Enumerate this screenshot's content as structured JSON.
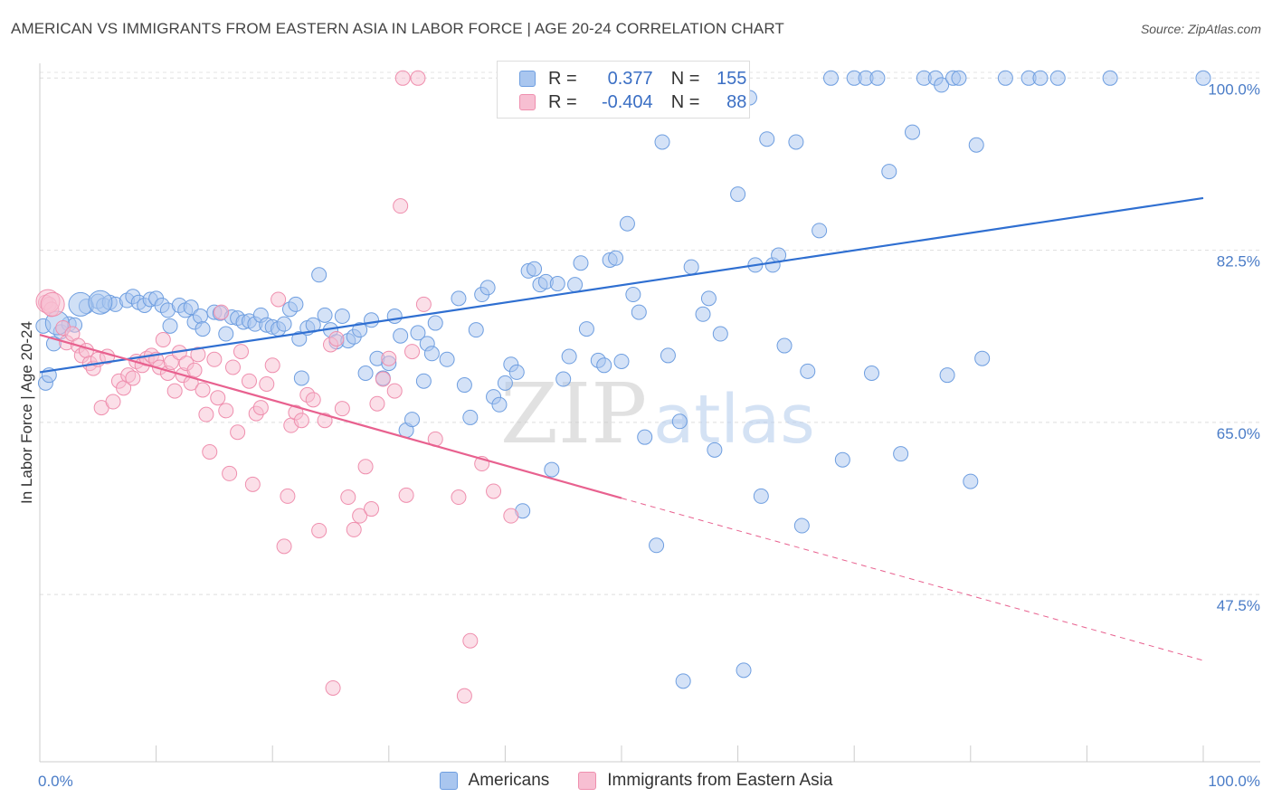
{
  "chart_data": {
    "type": "scatter",
    "title": "AMERICAN VS IMMIGRANTS FROM EASTERN ASIA IN LABOR FORCE | AGE 20-24 CORRELATION CHART",
    "source": "Source: ZipAtlas.com",
    "ylabel": "In Labor Force | Age 20-24",
    "xlabel": "",
    "xlim": [
      0,
      100
    ],
    "ylim": [
      30.5,
      101.5
    ],
    "x_tick_labels": [
      "0.0%",
      "100.0%"
    ],
    "y_ticks": [
      {
        "value": 100,
        "label": "100.0%"
      },
      {
        "value": 82.5,
        "label": "82.5%"
      },
      {
        "value": 65,
        "label": "65.0%"
      },
      {
        "value": 47.5,
        "label": "47.5%"
      }
    ],
    "watermark": {
      "zip": "ZIP",
      "atlas": "atlas"
    },
    "legend": {
      "r_label": "R =",
      "n_label": "N =",
      "entries": [
        {
          "r": "0.377",
          "n": "155"
        },
        {
          "r": "-0.404",
          "n": "88"
        }
      ]
    },
    "series": [
      {
        "name": "Americans",
        "color": "#6e9ee0",
        "fill": "#a9c6ef",
        "trend": {
          "x0": 0,
          "y0": 70.1,
          "x1": 100,
          "y1": 87.8
        },
        "points": [
          [
            0.5,
            69.0
          ],
          [
            0.8,
            69.8
          ],
          [
            1.2,
            73.0
          ],
          [
            1.8,
            74.2
          ],
          [
            2.5,
            75.0
          ],
          [
            3.0,
            74.9
          ],
          [
            4.0,
            76.8
          ],
          [
            5.0,
            77.3
          ],
          [
            5.5,
            76.9
          ],
          [
            6.0,
            77.2
          ],
          [
            6.5,
            77.0
          ],
          [
            7.5,
            77.4
          ],
          [
            8.0,
            77.8
          ],
          [
            8.5,
            77.2
          ],
          [
            9.0,
            76.9
          ],
          [
            9.5,
            77.5
          ],
          [
            10.0,
            77.6
          ],
          [
            10.5,
            76.9
          ],
          [
            11.0,
            76.4
          ],
          [
            11.2,
            74.8
          ],
          [
            12.0,
            76.9
          ],
          [
            12.5,
            76.4
          ],
          [
            13.0,
            76.7
          ],
          [
            13.3,
            75.2
          ],
          [
            13.8,
            75.8
          ],
          [
            14.0,
            74.5
          ],
          [
            15.0,
            76.2
          ],
          [
            15.5,
            76.1
          ],
          [
            16.0,
            74.0
          ],
          [
            16.5,
            75.7
          ],
          [
            17.0,
            75.6
          ],
          [
            17.5,
            75.2
          ],
          [
            18.0,
            75.3
          ],
          [
            18.5,
            75.0
          ],
          [
            19.0,
            75.9
          ],
          [
            19.5,
            74.9
          ],
          [
            20.0,
            74.7
          ],
          [
            20.5,
            74.5
          ],
          [
            21.0,
            75.0
          ],
          [
            21.5,
            76.5
          ],
          [
            22.0,
            77.0
          ],
          [
            22.3,
            73.5
          ],
          [
            22.5,
            69.5
          ],
          [
            23.0,
            74.6
          ],
          [
            23.5,
            74.9
          ],
          [
            24.0,
            80.0
          ],
          [
            24.5,
            75.9
          ],
          [
            25.0,
            74.4
          ],
          [
            25.5,
            73.2
          ],
          [
            26.0,
            75.8
          ],
          [
            26.5,
            73.3
          ],
          [
            27.0,
            73.7
          ],
          [
            27.5,
            74.4
          ],
          [
            28.0,
            70.0
          ],
          [
            28.5,
            75.4
          ],
          [
            29.0,
            71.5
          ],
          [
            29.5,
            69.5
          ],
          [
            30.0,
            71.0
          ],
          [
            30.5,
            75.8
          ],
          [
            31.0,
            73.8
          ],
          [
            31.5,
            64.2
          ],
          [
            32.0,
            65.3
          ],
          [
            32.5,
            74.1
          ],
          [
            33.0,
            69.2
          ],
          [
            33.3,
            73.0
          ],
          [
            33.7,
            72.0
          ],
          [
            34.0,
            75.1
          ],
          [
            35.0,
            71.4
          ],
          [
            36.0,
            77.6
          ],
          [
            36.5,
            68.8
          ],
          [
            37.0,
            65.5
          ],
          [
            37.5,
            74.4
          ],
          [
            38.0,
            78.0
          ],
          [
            38.5,
            78.7
          ],
          [
            39.0,
            67.6
          ],
          [
            39.5,
            66.8
          ],
          [
            40.0,
            69.0
          ],
          [
            40.5,
            70.9
          ],
          [
            41.0,
            70.1
          ],
          [
            41.5,
            56.0
          ],
          [
            42.0,
            80.4
          ],
          [
            42.5,
            80.6
          ],
          [
            43.0,
            79.0
          ],
          [
            43.5,
            79.3
          ],
          [
            44.0,
            60.2
          ],
          [
            44.5,
            79.1
          ],
          [
            45.0,
            69.4
          ],
          [
            45.5,
            71.7
          ],
          [
            46.0,
            79.0
          ],
          [
            46.5,
            81.2
          ],
          [
            47.0,
            74.5
          ],
          [
            48.0,
            71.3
          ],
          [
            48.5,
            70.8
          ],
          [
            49.0,
            81.5
          ],
          [
            49.5,
            81.7
          ],
          [
            50.0,
            71.2
          ],
          [
            50.5,
            85.2
          ],
          [
            51.0,
            78.0
          ],
          [
            51.5,
            76.2
          ],
          [
            52.0,
            63.5
          ],
          [
            53.0,
            52.5
          ],
          [
            53.5,
            93.5
          ],
          [
            54.0,
            71.8
          ],
          [
            55.0,
            65.1
          ],
          [
            55.3,
            38.7
          ],
          [
            56.0,
            80.8
          ],
          [
            57.0,
            76.0
          ],
          [
            57.5,
            77.6
          ],
          [
            58.0,
            62.2
          ],
          [
            58.5,
            74.0
          ],
          [
            60.0,
            88.2
          ],
          [
            60.5,
            39.8
          ],
          [
            61.0,
            98.0
          ],
          [
            61.5,
            81.0
          ],
          [
            62.0,
            57.5
          ],
          [
            62.5,
            93.8
          ],
          [
            63.0,
            81.0
          ],
          [
            63.5,
            82.0
          ],
          [
            64.0,
            72.8
          ],
          [
            65.0,
            93.5
          ],
          [
            65.5,
            54.5
          ],
          [
            66.0,
            70.2
          ],
          [
            67.0,
            84.5
          ],
          [
            68.0,
            100.0
          ],
          [
            69.0,
            61.2
          ],
          [
            70.0,
            100.0
          ],
          [
            71.0,
            100.0
          ],
          [
            71.5,
            70.0
          ],
          [
            72.0,
            100.0
          ],
          [
            73.0,
            90.5
          ],
          [
            74.0,
            61.8
          ],
          [
            75.0,
            94.5
          ],
          [
            76.0,
            100.0
          ],
          [
            77.0,
            100.0
          ],
          [
            77.5,
            99.3
          ],
          [
            78.0,
            69.8
          ],
          [
            78.5,
            100.0
          ],
          [
            79.0,
            100.0
          ],
          [
            80.0,
            59.0
          ],
          [
            80.5,
            93.2
          ],
          [
            81.0,
            71.5
          ],
          [
            83.0,
            100.0
          ],
          [
            85.0,
            100.0
          ],
          [
            86.0,
            100.0
          ],
          [
            87.5,
            100.0
          ],
          [
            92.0,
            100.0
          ],
          [
            100.0,
            100.0
          ],
          [
            0.3,
            74.8
          ]
        ],
        "big_points": [
          [
            1.5,
            75.1
          ],
          [
            3.5,
            77.0
          ],
          [
            5.2,
            77.2
          ]
        ]
      },
      {
        "name": "Immigrants from Eastern Asia",
        "color": "#ef8fae",
        "fill": "#f7bfd2",
        "trend": {
          "x0": 0,
          "y0": 73.9,
          "x1": 50,
          "y1": 57.3
        },
        "trend_dash": {
          "x0": 50,
          "y0": 57.3,
          "x1": 100,
          "y1": 40.8
        },
        "points": [
          [
            0.5,
            77.2
          ],
          [
            0.8,
            77.0
          ],
          [
            1.0,
            76.5
          ],
          [
            2.0,
            74.6
          ],
          [
            2.3,
            73.1
          ],
          [
            2.8,
            74.0
          ],
          [
            3.3,
            72.8
          ],
          [
            3.6,
            71.8
          ],
          [
            4.0,
            72.3
          ],
          [
            4.3,
            71.0
          ],
          [
            4.6,
            70.5
          ],
          [
            5.0,
            71.4
          ],
          [
            5.3,
            66.5
          ],
          [
            5.8,
            71.7
          ],
          [
            6.3,
            67.1
          ],
          [
            6.8,
            69.2
          ],
          [
            7.2,
            68.5
          ],
          [
            7.6,
            69.8
          ],
          [
            8.0,
            69.5
          ],
          [
            8.3,
            71.2
          ],
          [
            8.8,
            70.8
          ],
          [
            9.2,
            71.5
          ],
          [
            9.6,
            71.8
          ],
          [
            10.0,
            71.4
          ],
          [
            10.3,
            70.6
          ],
          [
            10.6,
            73.4
          ],
          [
            11.0,
            70.0
          ],
          [
            11.3,
            71.1
          ],
          [
            11.6,
            68.2
          ],
          [
            12.0,
            72.1
          ],
          [
            12.3,
            69.8
          ],
          [
            12.6,
            71.0
          ],
          [
            13.0,
            69.0
          ],
          [
            13.3,
            70.3
          ],
          [
            13.6,
            71.9
          ],
          [
            14.0,
            68.3
          ],
          [
            14.3,
            65.8
          ],
          [
            14.6,
            62.0
          ],
          [
            15.0,
            71.4
          ],
          [
            15.3,
            67.5
          ],
          [
            15.6,
            76.2
          ],
          [
            16.0,
            66.2
          ],
          [
            16.3,
            59.8
          ],
          [
            16.6,
            70.6
          ],
          [
            17.0,
            64.0
          ],
          [
            17.3,
            72.2
          ],
          [
            18.0,
            69.2
          ],
          [
            18.3,
            58.7
          ],
          [
            18.6,
            65.9
          ],
          [
            19.0,
            66.5
          ],
          [
            19.5,
            68.9
          ],
          [
            20.0,
            70.8
          ],
          [
            20.5,
            77.5
          ],
          [
            21.0,
            52.4
          ],
          [
            21.3,
            57.5
          ],
          [
            21.6,
            64.7
          ],
          [
            22.0,
            66.0
          ],
          [
            22.5,
            65.2
          ],
          [
            23.0,
            67.8
          ],
          [
            23.5,
            67.3
          ],
          [
            24.0,
            54.0
          ],
          [
            24.5,
            65.2
          ],
          [
            25.0,
            72.9
          ],
          [
            25.5,
            73.5
          ],
          [
            26.0,
            66.4
          ],
          [
            26.5,
            57.4
          ],
          [
            27.0,
            54.1
          ],
          [
            27.5,
            55.5
          ],
          [
            28.0,
            60.5
          ],
          [
            28.5,
            56.2
          ],
          [
            29.0,
            66.9
          ],
          [
            29.5,
            69.4
          ],
          [
            30.0,
            71.5
          ],
          [
            30.5,
            68.2
          ],
          [
            31.0,
            87.0
          ],
          [
            31.5,
            57.6
          ],
          [
            32.0,
            72.2
          ],
          [
            32.5,
            100.0
          ],
          [
            33.0,
            77.0
          ],
          [
            34.0,
            63.3
          ],
          [
            36.0,
            57.4
          ],
          [
            36.5,
            37.2
          ],
          [
            37.0,
            42.8
          ],
          [
            38.0,
            60.8
          ],
          [
            39.0,
            58.0
          ],
          [
            40.5,
            55.5
          ],
          [
            25.2,
            38.0
          ],
          [
            31.2,
            100.0
          ]
        ],
        "big_points": [
          [
            0.7,
            77.3
          ],
          [
            1.1,
            77.0
          ]
        ]
      }
    ]
  }
}
